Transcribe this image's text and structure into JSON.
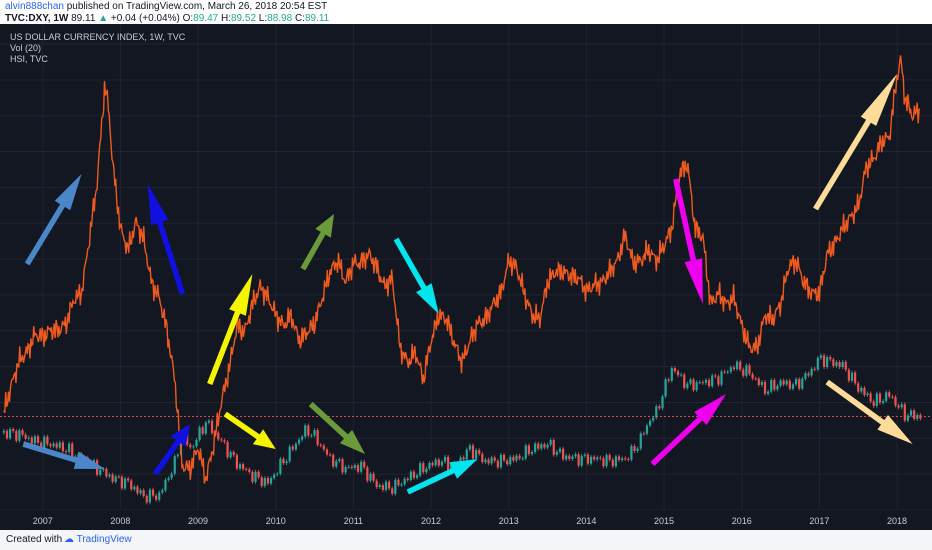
{
  "header": {
    "author": "alvin888chan",
    "published_text": "published on TradingView.com, March 26, 2018 20:54 EST",
    "symbol": "TVC:DXY, 1W",
    "last": "89.11",
    "change": "+0.04 (+0.04%)",
    "o_label": "O:",
    "o": "89.47",
    "h_label": "H:",
    "h": "89.52",
    "l_label": "L:",
    "l": "88.98",
    "c_label": "C:",
    "c": "89.11"
  },
  "legend": {
    "line1": "US DOLLAR CURRENCY INDEX, 1W, TVC",
    "line2": "Vol (20)",
    "line3": "HSI, TVC"
  },
  "footer": {
    "created_with": "Created with",
    "brand": "TradingView"
  },
  "colors": {
    "background": "#131722",
    "grid": "#1f2430",
    "hsi_line": "#ef5a1f",
    "candle_up": "#26a69a",
    "candle_down": "#ef5350",
    "dotted_line": "#ef5350",
    "arrow_blue": "#4a86c8",
    "arrow_darkblue": "#1010e0",
    "arrow_yellow": "#f5f500",
    "arrow_green": "#6a9a3a",
    "arrow_cyan": "#00e5ee",
    "arrow_magenta": "#ee00ee",
    "arrow_peach": "#fddc9a"
  },
  "chart_data": {
    "type": "line",
    "x_ticks": [
      "2007",
      "2008",
      "2009",
      "2010",
      "2011",
      "2012",
      "2013",
      "2014",
      "2015",
      "2016",
      "2017",
      "2018"
    ],
    "x_range": [
      2006.45,
      2018.45
    ],
    "series": [
      {
        "name": "HSI, TVC",
        "x": [
          2006.5,
          2006.6,
          2006.7,
          2006.8,
          2006.9,
          2007.0,
          2007.1,
          2007.2,
          2007.3,
          2007.4,
          2007.5,
          2007.6,
          2007.7,
          2007.8,
          2007.85,
          2007.9,
          2008.0,
          2008.1,
          2008.2,
          2008.3,
          2008.4,
          2008.5,
          2008.6,
          2008.7,
          2008.8,
          2008.9,
          2009.0,
          2009.1,
          2009.2,
          2009.3,
          2009.4,
          2009.5,
          2009.6,
          2009.7,
          2009.8,
          2009.9,
          2010.0,
          2010.1,
          2010.2,
          2010.3,
          2010.4,
          2010.5,
          2010.6,
          2010.7,
          2010.8,
          2010.9,
          2011.0,
          2011.1,
          2011.2,
          2011.3,
          2011.4,
          2011.5,
          2011.6,
          2011.7,
          2011.8,
          2011.9,
          2012.0,
          2012.1,
          2012.2,
          2012.3,
          2012.4,
          2012.5,
          2012.6,
          2012.7,
          2012.8,
          2012.9,
          2013.0,
          2013.1,
          2013.2,
          2013.3,
          2013.4,
          2013.5,
          2013.6,
          2013.7,
          2013.8,
          2013.9,
          2014.0,
          2014.1,
          2014.2,
          2014.3,
          2014.4,
          2014.5,
          2014.6,
          2014.7,
          2014.8,
          2014.9,
          2015.0,
          2015.1,
          2015.2,
          2015.3,
          2015.4,
          2015.5,
          2015.6,
          2015.7,
          2015.8,
          2015.9,
          2016.0,
          2016.1,
          2016.2,
          2016.3,
          2016.4,
          2016.5,
          2016.6,
          2016.7,
          2016.8,
          2016.9,
          2017.0,
          2017.1,
          2017.2,
          2017.3,
          2017.4,
          2017.5,
          2017.6,
          2017.7,
          2017.8,
          2017.9,
          2018.0,
          2018.05,
          2018.1,
          2018.2,
          2018.3
        ],
        "values": [
          16500,
          17800,
          18900,
          19300,
          20100,
          20000,
          20300,
          20300,
          20600,
          21700,
          22000,
          24500,
          27100,
          31600,
          30500,
          28000,
          25000,
          24000,
          25300,
          24500,
          22500,
          21800,
          20300,
          18000,
          14000,
          13900,
          14900,
          13400,
          15000,
          17000,
          18500,
          20500,
          20200,
          21500,
          22300,
          21800,
          21000,
          20500,
          21000,
          19800,
          20200,
          20600,
          21800,
          23000,
          23500,
          22500,
          23400,
          23400,
          23800,
          23200,
          22300,
          22700,
          19500,
          18800,
          19300,
          18000,
          19800,
          21000,
          20800,
          19700,
          18800,
          19800,
          20600,
          20800,
          21500,
          22000,
          23500,
          23200,
          22000,
          21000,
          20800,
          22500,
          23000,
          23000,
          22800,
          22700,
          22100,
          22400,
          22500,
          23000,
          23500,
          24700,
          23400,
          23500,
          24000,
          23500,
          24200,
          25000,
          27500,
          28000,
          25000,
          24600,
          21500,
          22000,
          21500,
          21800,
          20500,
          19500,
          19500,
          21000,
          20800,
          21500,
          23200,
          23500,
          22500,
          22000,
          22000,
          23800,
          24300,
          25000,
          25500,
          26000,
          27800,
          28200,
          29000,
          29200,
          32000,
          32800,
          31000,
          30200,
          30500
        ]
      }
    ],
    "ylim_hsi": [
      12000,
      33500
    ],
    "dxy_series": {
      "name": "US DOLLAR CURRENCY INDEX, 1W, TVC",
      "x": [
        2006.5,
        2006.7,
        2006.9,
        2007.1,
        2007.3,
        2007.5,
        2007.7,
        2007.9,
        2008.1,
        2008.3,
        2008.5,
        2008.7,
        2008.8,
        2008.9,
        2009.0,
        2009.1,
        2009.2,
        2009.3,
        2009.5,
        2009.7,
        2009.9,
        2010.1,
        2010.3,
        2010.4,
        2010.5,
        2010.7,
        2010.9,
        2011.1,
        2011.3,
        2011.5,
        2011.7,
        2011.9,
        2012.1,
        2012.3,
        2012.5,
        2012.7,
        2012.9,
        2013.1,
        2013.3,
        2013.5,
        2013.7,
        2013.9,
        2014.1,
        2014.3,
        2014.5,
        2014.6,
        2014.7,
        2014.8,
        2014.9,
        2015.0,
        2015.1,
        2015.3,
        2015.5,
        2015.7,
        2015.9,
        2016.1,
        2016.3,
        2016.5,
        2016.7,
        2016.9,
        2017.0,
        2017.1,
        2017.3,
        2017.5,
        2017.7,
        2017.9,
        2018.1,
        2018.3
      ],
      "values": [
        85.8,
        85.5,
        84.0,
        83.5,
        82.5,
        80.5,
        78.5,
        76.5,
        75.5,
        72.8,
        73.0,
        79.5,
        85.5,
        82.5,
        85.0,
        88.0,
        86.0,
        84.0,
        79.5,
        77.0,
        75.5,
        80.0,
        84.5,
        86.5,
        85.0,
        80.5,
        78.5,
        79.0,
        75.0,
        74.5,
        76.5,
        78.5,
        80.0,
        79.0,
        82.5,
        80.0,
        80.0,
        80.5,
        82.5,
        83.5,
        81.0,
        80.5,
        80.5,
        80.0,
        80.5,
        82.0,
        84.5,
        88.0,
        90.0,
        94.5,
        99.0,
        95.5,
        96.0,
        97.0,
        99.5,
        98.0,
        94.5,
        96.0,
        95.5,
        98.5,
        101.0,
        100.5,
        99.5,
        95.0,
        92.0,
        93.5,
        89.5,
        89.1
      ],
      "ylim": [
        70,
        108
      ],
      "last": 89.11
    }
  }
}
